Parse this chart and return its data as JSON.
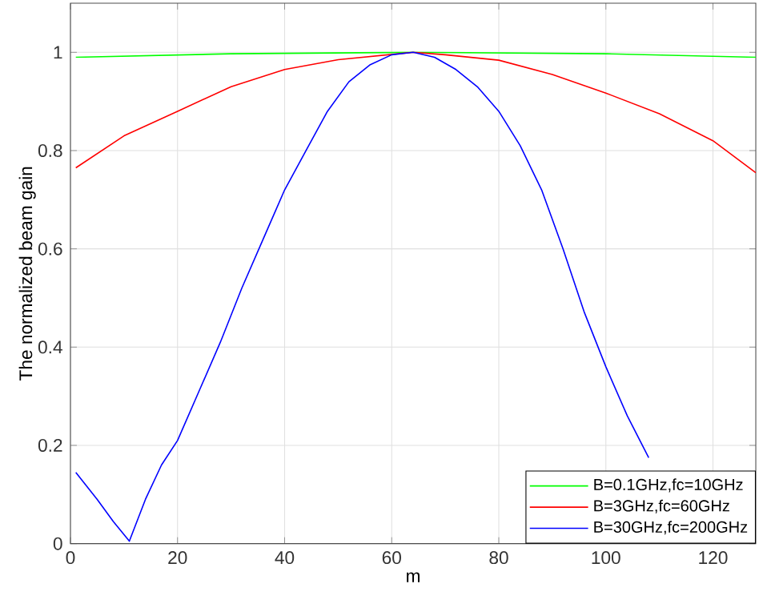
{
  "chart_data": {
    "type": "line",
    "xlabel": "m",
    "ylabel": "The normalized beam gain",
    "xlim": [
      0,
      128
    ],
    "ylim": [
      0,
      1.1
    ],
    "xticks": [
      0,
      20,
      40,
      60,
      80,
      100,
      120
    ],
    "yticks": [
      0,
      0.2,
      0.4,
      0.6,
      0.8,
      1
    ],
    "grid": true,
    "legend": "bottom right",
    "line_style": "solid",
    "marker": "none",
    "series": [
      {
        "name": "B=0.1GHz,fc=10GHz",
        "color": "#00ff00",
        "x": [
          1,
          30,
          64,
          100,
          128
        ],
        "values": [
          0.99,
          0.997,
          1,
          0.997,
          0.99
        ]
      },
      {
        "name": "B=3GHz,fc=60GHz",
        "color": "#ff0000",
        "x": [
          1,
          10,
          20,
          30,
          40,
          50,
          64,
          70,
          80,
          90,
          100,
          110,
          120,
          128
        ],
        "values": [
          0.765,
          0.83,
          0.88,
          0.93,
          0.965,
          0.985,
          1,
          0.995,
          0.984,
          0.955,
          0.917,
          0.875,
          0.82,
          0.755
        ]
      },
      {
        "name": "B=30GHz,fc=200GHz",
        "color": "#0000ff",
        "x": [
          1,
          5,
          8,
          11,
          14,
          17,
          20,
          24,
          28,
          32,
          36,
          40,
          44,
          48,
          52,
          56,
          60,
          64,
          68,
          72,
          76,
          80,
          84,
          88,
          92,
          96,
          100,
          104,
          108
        ],
        "values": [
          0.145,
          0.09,
          0.045,
          0.005,
          0.09,
          0.16,
          0.21,
          0.31,
          0.41,
          0.52,
          0.62,
          0.72,
          0.8,
          0.88,
          0.94,
          0.975,
          0.995,
          1,
          0.99,
          0.965,
          0.93,
          0.88,
          0.81,
          0.72,
          0.6,
          0.47,
          0.36,
          0.26,
          0.175
        ]
      }
    ]
  }
}
